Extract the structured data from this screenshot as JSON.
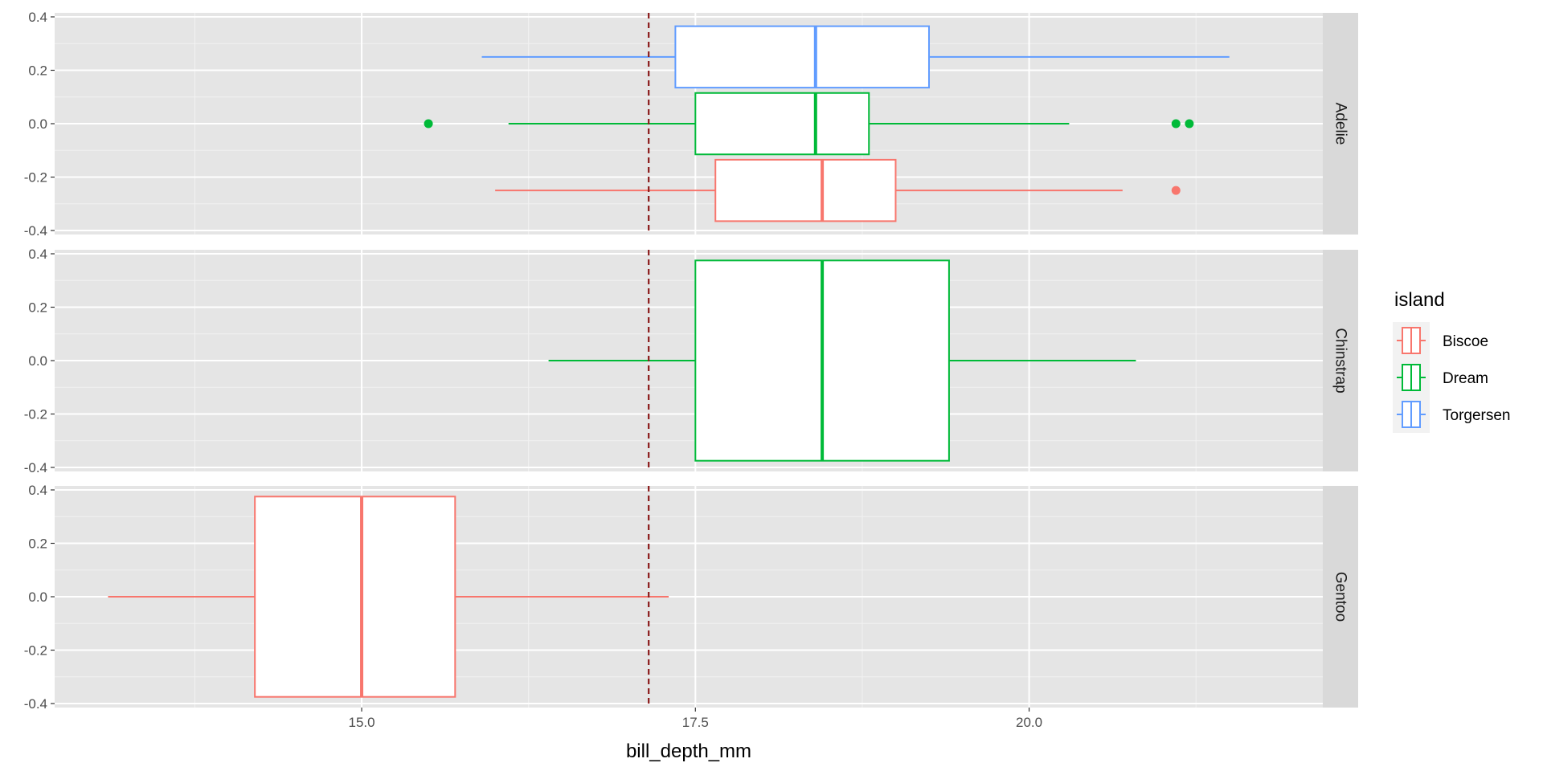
{
  "chart_data": {
    "type": "boxplot",
    "orientation": "horizontal",
    "xlabel": "bill_depth_mm",
    "ylabel": "",
    "xlim": [
      12.7,
      22.2
    ],
    "ylim": [
      -0.4,
      0.4
    ],
    "x_ticks": [
      15.0,
      17.5,
      20.0
    ],
    "x_tick_labels": [
      "15.0",
      "17.5",
      "20.0"
    ],
    "y_ticks": [
      0.4,
      0.2,
      0.0,
      -0.2,
      -0.4
    ],
    "y_tick_labels": [
      "0.4",
      "0.2",
      "0.0",
      "-0.2",
      "-0.4"
    ],
    "reference_line": {
      "x": 17.15,
      "style": "dashed",
      "color": "#8b1a1a"
    },
    "legend": {
      "title": "island",
      "position": "right",
      "items": [
        {
          "label": "Biscoe",
          "color": "#f8766d"
        },
        {
          "label": "Dream",
          "color": "#00ba38"
        },
        {
          "label": "Torgersen",
          "color": "#619cff"
        }
      ]
    },
    "facets": [
      {
        "label": "Adelie",
        "boxes": [
          {
            "island": "Torgersen",
            "center": 0.25,
            "half_width": 0.115,
            "whisker_low": 15.9,
            "q1": 17.35,
            "median": 18.4,
            "q3": 19.25,
            "whisker_high": 21.5,
            "outliers": []
          },
          {
            "island": "Dream",
            "center": 0.0,
            "half_width": 0.115,
            "whisker_low": 16.1,
            "q1": 17.5,
            "median": 18.4,
            "q3": 18.8,
            "whisker_high": 20.3,
            "outliers": [
              15.5,
              21.1,
              21.2
            ]
          },
          {
            "island": "Biscoe",
            "center": -0.25,
            "half_width": 0.115,
            "whisker_low": 16.0,
            "q1": 17.65,
            "median": 18.45,
            "q3": 19.0,
            "whisker_high": 20.7,
            "outliers": [
              21.1
            ]
          }
        ]
      },
      {
        "label": "Chinstrap",
        "boxes": [
          {
            "island": "Dream",
            "center": 0.0,
            "half_width": 0.375,
            "whisker_low": 16.4,
            "q1": 17.5,
            "median": 18.45,
            "q3": 19.4,
            "whisker_high": 20.8,
            "outliers": []
          }
        ]
      },
      {
        "label": "Gentoo",
        "boxes": [
          {
            "island": "Biscoe",
            "center": 0.0,
            "half_width": 0.375,
            "whisker_low": 13.1,
            "q1": 14.2,
            "median": 15.0,
            "q3": 15.7,
            "whisker_high": 17.3,
            "outliers": []
          }
        ]
      }
    ]
  }
}
